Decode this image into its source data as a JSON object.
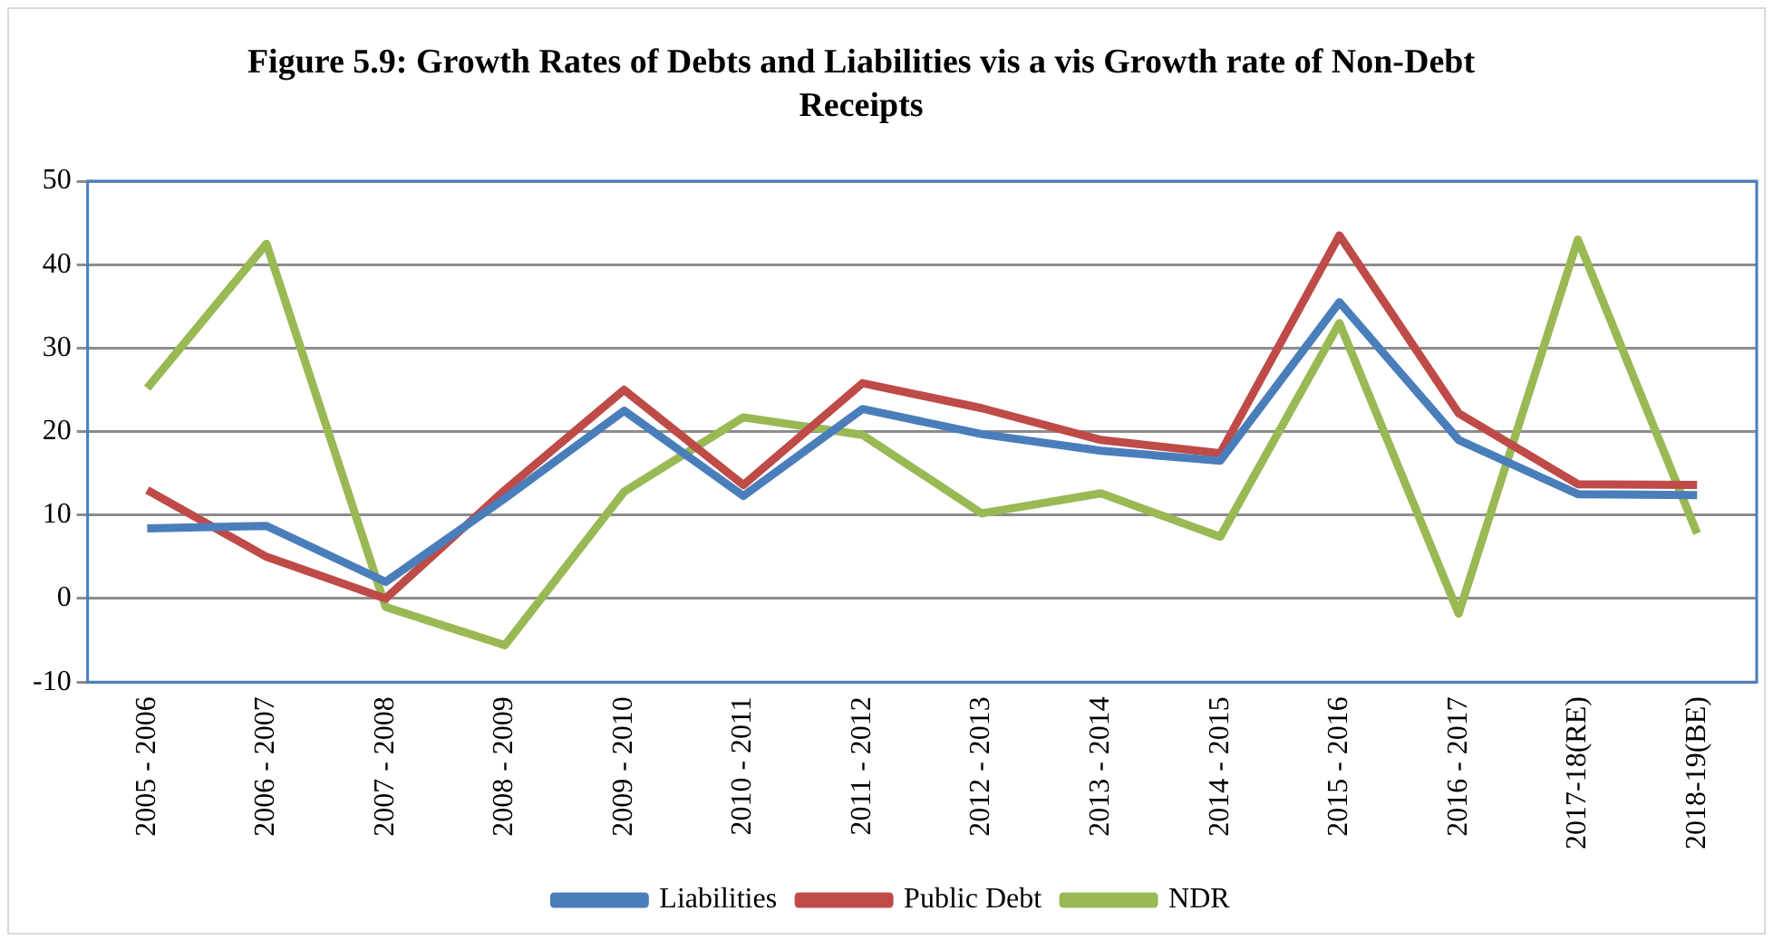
{
  "chart_data": {
    "type": "line",
    "title": "Figure 5.9: Growth Rates of Debts and Liabilities vis a vis Growth rate of Non-Debt Receipts",
    "categories": [
      "2005 - 2006",
      "2006 - 2007",
      "2007 - 2008",
      "2008 - 2009",
      "2009 - 2010",
      "2010 - 2011",
      "2011 - 2012",
      "2012 - 2013",
      "2013 - 2014",
      "2014 - 2015",
      "2015 - 2016",
      "2016 - 2017",
      "2017-18(RE)",
      "2018-19(BE)"
    ],
    "series": [
      {
        "name": "Liabilities",
        "color": "#4a7ebb",
        "values": [
          8.4,
          8.7,
          2,
          12,
          22.5,
          12.3,
          22.7,
          19.7,
          17.7,
          16.5,
          35.5,
          19,
          12.5,
          12.4
        ]
      },
      {
        "name": "Public Debt",
        "color": "#be4b48",
        "values": [
          13,
          5,
          0,
          13,
          25,
          13.6,
          25.8,
          22.8,
          19,
          17.4,
          43.5,
          22.2,
          13.7,
          13.6
        ]
      },
      {
        "name": "NDR",
        "color": "#98b954",
        "values": [
          25.2,
          42.5,
          -1,
          -5.6,
          12.8,
          21.7,
          19.6,
          10.2,
          12.6,
          7.4,
          33,
          -1.8,
          43,
          7.8
        ]
      }
    ],
    "ylim": [
      -10,
      50
    ],
    "yticks": [
      -10,
      0,
      10,
      20,
      30,
      40,
      50
    ],
    "grid": "y",
    "legend": "bottom",
    "marker": "none",
    "line_style": "solid"
  }
}
